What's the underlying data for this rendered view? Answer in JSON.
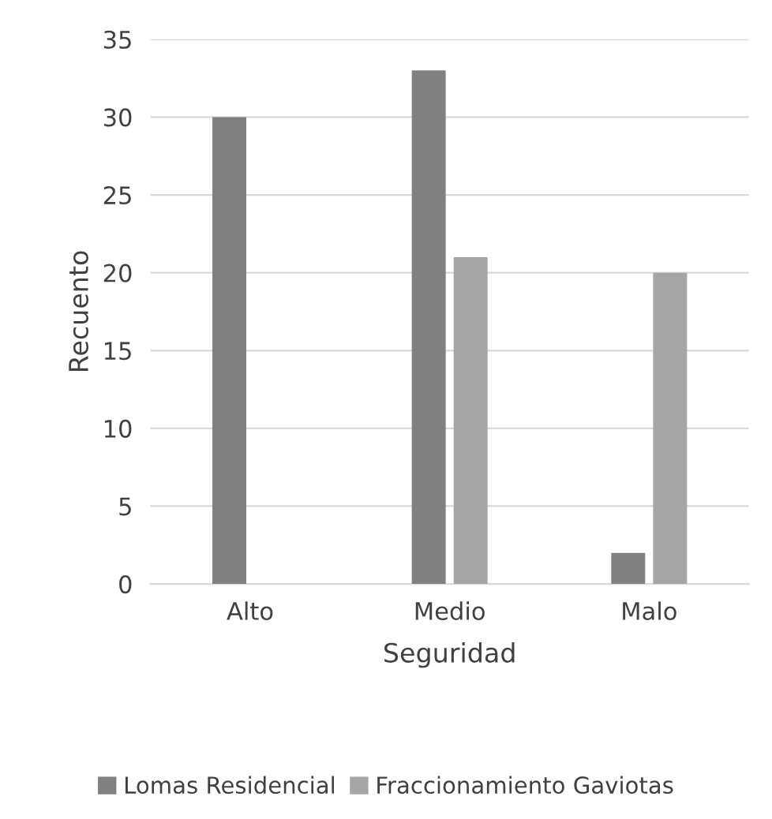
{
  "chart_data": {
    "type": "bar",
    "xlabel": "Seguridad",
    "ylabel": "Recuento",
    "categories": [
      "Alto",
      "Medio",
      "Malo"
    ],
    "series": [
      {
        "name": "Lomas Residencial",
        "color": "#808080",
        "values": [
          30,
          33,
          2
        ]
      },
      {
        "name": "Fraccionamiento Gaviotas",
        "color": "#a5a5a5",
        "values": [
          null,
          21,
          20
        ]
      }
    ],
    "ylim": [
      0,
      35
    ],
    "yticks": [
      0,
      5,
      10,
      15,
      20,
      25,
      30,
      35
    ],
    "grid": "y",
    "legend": "bottom"
  }
}
